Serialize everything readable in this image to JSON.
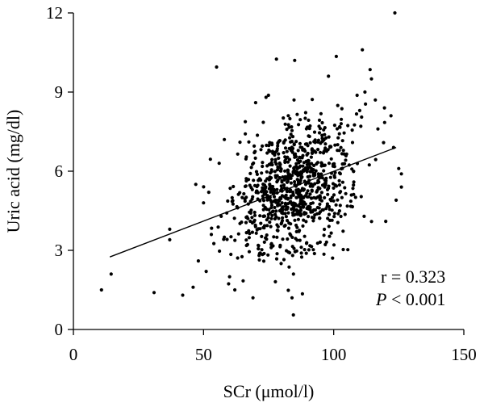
{
  "chart_data": {
    "type": "scatter",
    "title": "",
    "xlabel": "SCr (μmol/l)",
    "ylabel": "Uric acid (mg/dl)",
    "xlim": [
      0,
      150
    ],
    "ylim": [
      0,
      12
    ],
    "xticks": [
      0,
      50,
      100,
      150
    ],
    "yticks": [
      0,
      3,
      6,
      9,
      12
    ],
    "grid": false,
    "annotation": {
      "r_text": "r = 0.323",
      "p_symbol": "P",
      "p_text": " < 0.001"
    },
    "fit_line": {
      "x": [
        14,
        124
      ],
      "y": [
        2.75,
        6.9
      ]
    },
    "generated_cloud": {
      "count": 900,
      "x_mean": 85,
      "x_sd": 11,
      "y_mean": 5.3,
      "y_sd": 1.35,
      "correlation": 0.323,
      "x_range": [
        48,
        126
      ],
      "y_range": [
        1.2,
        8.9
      ]
    },
    "points": [
      [
        10.8,
        1.5
      ],
      [
        14.5,
        2.1
      ],
      [
        31,
        1.4
      ],
      [
        37,
        3.8
      ],
      [
        37,
        3.4
      ],
      [
        42,
        1.3
      ],
      [
        46,
        1.6
      ],
      [
        55,
        9.95
      ],
      [
        78,
        10.25
      ],
      [
        85,
        10.2
      ],
      [
        98,
        9.6
      ],
      [
        101,
        10.35
      ],
      [
        111,
        10.6
      ],
      [
        114,
        9.85
      ],
      [
        114.5,
        9.5
      ],
      [
        123.5,
        12.0
      ],
      [
        84.5,
        0.55
      ],
      [
        84,
        1.2
      ],
      [
        88,
        1.35
      ],
      [
        69,
        1.2
      ],
      [
        62,
        1.5
      ],
      [
        51,
        2.2
      ],
      [
        48,
        2.6
      ],
      [
        60,
        2.0
      ],
      [
        120,
        4.1
      ],
      [
        124,
        4.9
      ],
      [
        126,
        5.9
      ],
      [
        126,
        5.4
      ],
      [
        125,
        6.1
      ],
      [
        123,
        6.9
      ],
      [
        122,
        8.1
      ],
      [
        119.5,
        8.4
      ],
      [
        116,
        8.7
      ],
      [
        112,
        9.0
      ],
      [
        110,
        8.3
      ],
      [
        117,
        7.6
      ],
      [
        70,
        8.6
      ],
      [
        74,
        8.8
      ],
      [
        64,
        7.1
      ],
      [
        58,
        7.2
      ],
      [
        56,
        6.3
      ],
      [
        52,
        5.2
      ],
      [
        50,
        4.8
      ],
      [
        53,
        3.6
      ],
      [
        47,
        5.5
      ]
    ]
  }
}
